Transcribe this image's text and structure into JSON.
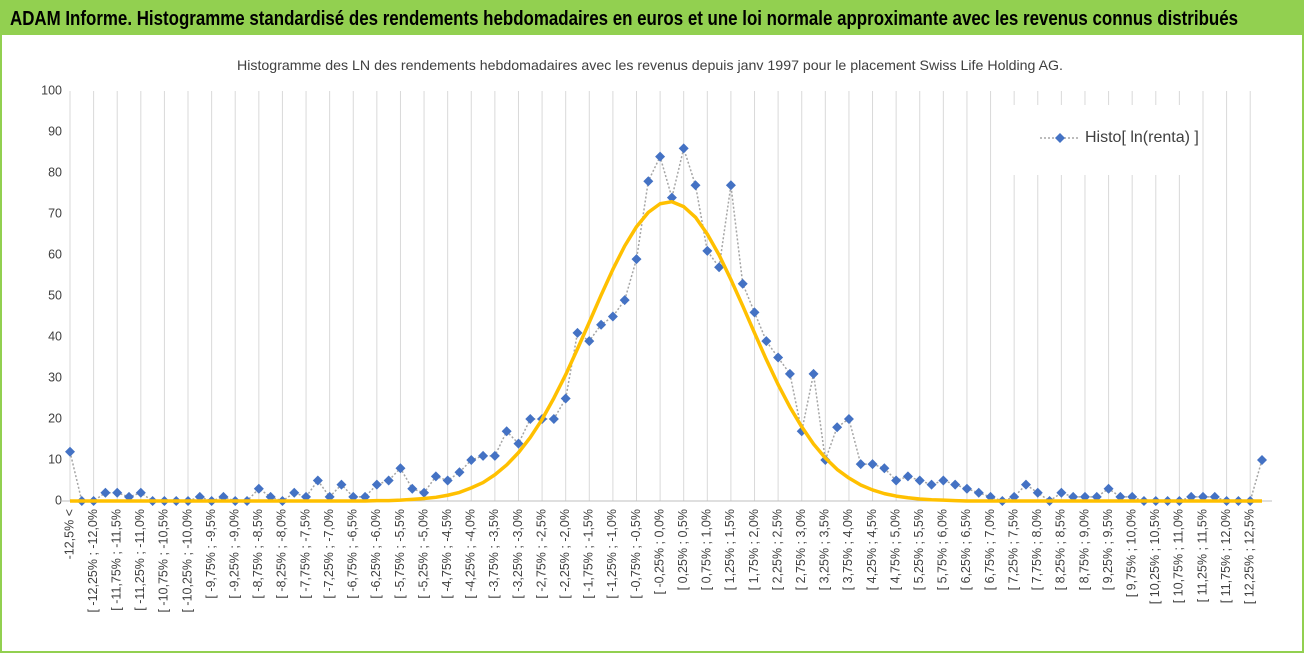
{
  "header": "ADAM Informe. Histogramme standardisé des rendements hebdomadaires en euros et une loi normale approximante avec les revenus connus distribués",
  "chart_data": {
    "type": "line",
    "title": "Histogramme des LN des rendements hebdomadaires avec les revenus depuis janv 1997 pour le placement Swiss Life Holding AG.",
    "categories": [
      "-12,5% <",
      null,
      "[ -12,25% ; -12,0%",
      null,
      "[ -11,75% ; -11,5%",
      null,
      "[ -11,25% ; -11,0%",
      null,
      "[ -10,75% ; -10,5%",
      null,
      "[ -10,25% ; -10,0%",
      null,
      "[ -9,75% ; -9,5%",
      null,
      "[ -9,25% ; -9,0%",
      null,
      "[ -8,75% ; -8,5%",
      null,
      "[ -8,25% ; -8,0%",
      null,
      "[ -7,75% ; -7,5%",
      null,
      "[ -7,25% ; -7,0%",
      null,
      "[ -6,75% ; -6,5%",
      null,
      "[ -6,25% ; -6,0%",
      null,
      "[ -5,75% ; -5,5%",
      null,
      "[ -5,25% ; -5,0%",
      null,
      "[ -4,75% ; -4,5%",
      null,
      "[ -4,25% ; -4,0%",
      null,
      "[ -3,75% ; -3,5%",
      null,
      "[ -3,25% ; -3,0%",
      null,
      "[ -2,75% ; -2,5%",
      null,
      "[ -2,25% ; -2,0%",
      null,
      "[ -1,75% ; -1,5%",
      null,
      "[ -1,25% ; -1,0%",
      null,
      "[ -0,75% ; -0,5%",
      null,
      "[ -0,25% ; 0,0%",
      null,
      "[ 0,25% ; 0,5%",
      null,
      "[ 0,75% ; 1,0%",
      null,
      "[ 1,25% ; 1,5%",
      null,
      "[ 1,75% ; 2,0%",
      null,
      "[ 2,25% ; 2,5%",
      null,
      "[ 2,75% ; 3,0%",
      null,
      "[ 3,25% ; 3,5%",
      null,
      "[ 3,75% ; 4,0%",
      null,
      "[ 4,25% ; 4,5%",
      null,
      "[ 4,75% ; 5,0%",
      null,
      "[ 5,25% ; 5,5%",
      null,
      "[ 5,75% ; 6,0%",
      null,
      "[ 6,25% ; 6,5%",
      null,
      "[ 6,75% ; 7,0%",
      null,
      "[ 7,25% ; 7,5%",
      null,
      "[ 7,75% ; 8,0%",
      null,
      "[ 8,25% ; 8,5%",
      null,
      "[ 8,75% ; 9,0%",
      null,
      "[ 9,25% ; 9,5%",
      null,
      "[ 9,75% ; 10,0%",
      null,
      "[ 10,25% ; 10,5%",
      null,
      "[ 10,75% ; 11,0%",
      null,
      "[ 11,25% ; 11,5%",
      null,
      "[ 11,75% ; 12,0%",
      null,
      "[ 12,25% ; 12,5%",
      null
    ],
    "series": [
      {
        "name": "Histo[ ln(renta) ]",
        "color": "#4472c4",
        "values": [
          12,
          0,
          0,
          2,
          2,
          1,
          2,
          0,
          0,
          0,
          0,
          1,
          0,
          1,
          0,
          0,
          3,
          1,
          0,
          2,
          1,
          5,
          1,
          4,
          1,
          1,
          4,
          5,
          8,
          3,
          2,
          6,
          5,
          7,
          10,
          11,
          11,
          17,
          14,
          20,
          20,
          20,
          25,
          41,
          39,
          43,
          45,
          49,
          59,
          78,
          84,
          74,
          86,
          77,
          61,
          57,
          77,
          53,
          46,
          39,
          35,
          31,
          17,
          31,
          10,
          18,
          20,
          9,
          9,
          8,
          5,
          6,
          5,
          4,
          5,
          4,
          3,
          2,
          1,
          0,
          1,
          4,
          2,
          0,
          2,
          1,
          1,
          1,
          3,
          1,
          1,
          0,
          0,
          0,
          0,
          1,
          1,
          1,
          0,
          0,
          0,
          10
        ]
      },
      {
        "color": "#ffc000",
        "values": [
          0,
          0,
          0,
          0,
          0,
          0,
          0,
          0,
          0,
          0,
          0,
          0,
          0,
          0,
          0,
          0,
          0,
          0,
          0,
          0,
          0,
          0,
          0,
          0,
          0,
          0,
          0.1,
          0.1,
          0.2,
          0.4,
          0.6,
          0.9,
          1.4,
          2.1,
          3.2,
          4.5,
          6.4,
          8.8,
          11.8,
          15.5,
          19.9,
          25.1,
          30.8,
          37.1,
          43.6,
          50.2,
          56.5,
          62.2,
          66.9,
          70.4,
          72.5,
          73.0,
          71.8,
          69.2,
          65.1,
          60.0,
          54.0,
          47.6,
          41.0,
          34.5,
          28.4,
          22.9,
          18.1,
          13.9,
          10.5,
          7.7,
          5.6,
          3.9,
          2.7,
          1.8,
          1.2,
          0.8,
          0.5,
          0.3,
          0.2,
          0.1,
          0,
          0,
          0,
          0,
          0,
          0,
          0,
          0,
          0,
          0,
          0,
          0,
          0,
          0,
          0,
          0,
          0,
          0,
          0,
          0,
          0,
          0,
          0,
          0,
          0,
          0
        ]
      }
    ],
    "ylim": [
      0,
      100
    ],
    "yticks": [
      0,
      10,
      20,
      30,
      40,
      50,
      60,
      70,
      80,
      90,
      100
    ],
    "grid": "x",
    "legend": "top-right"
  }
}
